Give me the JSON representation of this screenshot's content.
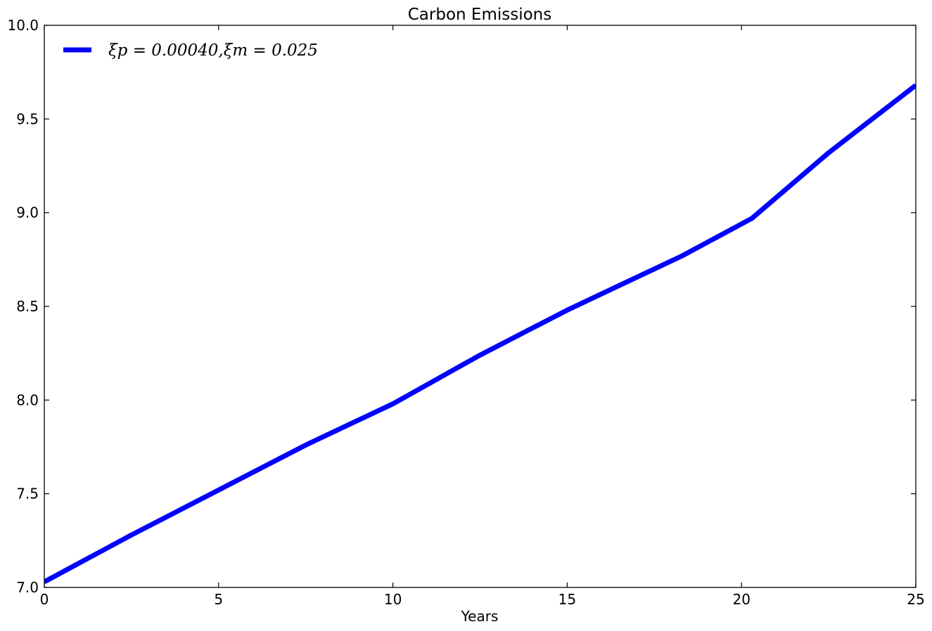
{
  "chart_data": {
    "type": "line",
    "title": "Carbon Emissions",
    "xlabel": "Years",
    "ylabel": "",
    "xlim": [
      0,
      25
    ],
    "ylim": [
      7.0,
      10.0
    ],
    "xticks": [
      "0",
      "5",
      "10",
      "15",
      "20",
      "25"
    ],
    "yticks": [
      "7.0",
      "7.5",
      "8.0",
      "8.5",
      "9.0",
      "9.5",
      "10.0"
    ],
    "grid": false,
    "legend_position": "top-left",
    "series": [
      {
        "name": "ξp = 0.00040,ξm = 0.025",
        "color": "#0000ff",
        "x": [
          0,
          2.5,
          5,
          7.5,
          10,
          12.5,
          15,
          18.3,
          20.3,
          22.5,
          25
        ],
        "y": [
          7.03,
          7.28,
          7.52,
          7.76,
          7.98,
          8.24,
          8.48,
          8.77,
          8.97,
          9.32,
          9.68
        ]
      }
    ]
  }
}
